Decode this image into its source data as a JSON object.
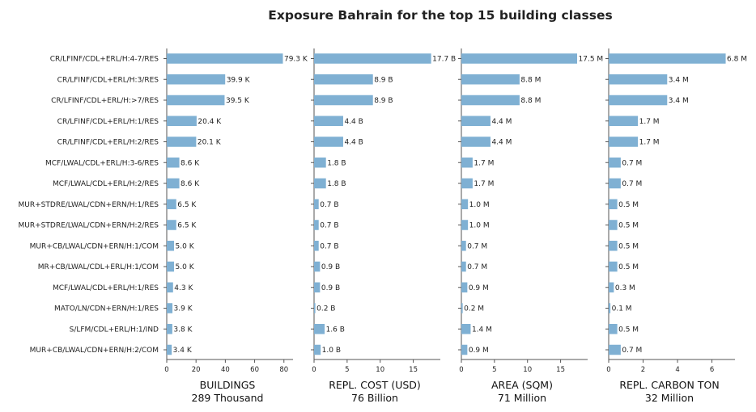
{
  "title": "Exposure Bahrain for the top 15 building classes",
  "bar_color": "#7fb0d3",
  "axis_color": "#555555",
  "chart_data": [
    {
      "type": "bar",
      "orientation": "horizontal",
      "xlabel": "BUILDINGS",
      "subtitle": "289 Thousand",
      "xlim": [
        0,
        84
      ],
      "ticks": [
        0,
        20,
        40,
        60,
        80
      ],
      "categories": [
        "CR/LFINF/CDL+ERL/H:4-7/RES",
        "CR/LFINF/CDL+ERL/H:3/RES",
        "CR/LFINF/CDL+ERL/H:>7/RES",
        "CR/LFINF/CDL+ERL/H:1/RES",
        "CR/LFINF/CDL+ERL/H:2/RES",
        "MCF/LWAL/CDL+ERL/H:3-6/RES",
        "MCF/LWAL/CDL+ERL/H:2/RES",
        "MUR+STDRE/LWAL/CDN+ERN/H:1/RES",
        "MUR+STDRE/LWAL/CDN+ERN/H:2/RES",
        "MUR+CB/LWAL/CDN+ERN/H:1/COM",
        "MR+CB/LWAL/CDL+ERL/H:1/COM",
        "MCF/LWAL/CDL+ERL/H:1/RES",
        "MATO/LN/CDN+ERN/H:1/RES",
        "S/LFM/CDL+ERL/H:1/IND",
        "MUR+CB/LWAL/CDN+ERN/H:2/COM"
      ],
      "values": [
        79.3,
        39.9,
        39.5,
        20.4,
        20.1,
        8.6,
        8.6,
        6.5,
        6.5,
        5.0,
        5.0,
        4.3,
        3.9,
        3.8,
        3.4
      ],
      "labels": [
        "79.3 K",
        "39.9 K",
        "39.5 K",
        "20.4 K",
        "20.1 K",
        "8.6 K",
        "8.6 K",
        "6.5 K",
        "6.5 K",
        "5.0 K",
        "5.0 K",
        "4.3 K",
        "3.9 K",
        "3.8 K",
        "3.4 K"
      ]
    },
    {
      "type": "bar",
      "orientation": "horizontal",
      "xlabel": "REPL. COST (USD)",
      "subtitle": "76 Billion",
      "xlim": [
        0,
        18.6
      ],
      "ticks": [
        0,
        5,
        10,
        15
      ],
      "categories": [
        "CR/LFINF/CDL+ERL/H:4-7/RES",
        "CR/LFINF/CDL+ERL/H:3/RES",
        "CR/LFINF/CDL+ERL/H:>7/RES",
        "CR/LFINF/CDL+ERL/H:1/RES",
        "CR/LFINF/CDL+ERL/H:2/RES",
        "MCF/LWAL/CDL+ERL/H:3-6/RES",
        "MCF/LWAL/CDL+ERL/H:2/RES",
        "MUR+STDRE/LWAL/CDN+ERN/H:1/RES",
        "MUR+STDRE/LWAL/CDN+ERN/H:2/RES",
        "MUR+CB/LWAL/CDN+ERN/H:1/COM",
        "MR+CB/LWAL/CDL+ERL/H:1/COM",
        "MCF/LWAL/CDL+ERL/H:1/RES",
        "MATO/LN/CDN+ERN/H:1/RES",
        "S/LFM/CDL+ERL/H:1/IND",
        "MUR+CB/LWAL/CDN+ERN/H:2/COM"
      ],
      "values": [
        17.7,
        8.9,
        8.9,
        4.4,
        4.4,
        1.8,
        1.8,
        0.7,
        0.7,
        0.7,
        0.9,
        0.9,
        0.2,
        1.6,
        1.0
      ],
      "labels": [
        "17.7 B",
        "8.9 B",
        "8.9 B",
        "4.4 B",
        "4.4 B",
        "1.8 B",
        "1.8 B",
        "0.7 B",
        "0.7 B",
        "0.7 B",
        "0.9 B",
        "0.9 B",
        "0.2 B",
        "1.6 B",
        "1.0 B"
      ]
    },
    {
      "type": "bar",
      "orientation": "horizontal",
      "xlabel": "AREA (SQM)",
      "subtitle": "71 Million",
      "xlim": [
        0,
        18.6
      ],
      "ticks": [
        0,
        5,
        10,
        15
      ],
      "categories": [
        "CR/LFINF/CDL+ERL/H:4-7/RES",
        "CR/LFINF/CDL+ERL/H:3/RES",
        "CR/LFINF/CDL+ERL/H:>7/RES",
        "CR/LFINF/CDL+ERL/H:1/RES",
        "CR/LFINF/CDL+ERL/H:2/RES",
        "MCF/LWAL/CDL+ERL/H:3-6/RES",
        "MCF/LWAL/CDL+ERL/H:2/RES",
        "MUR+STDRE/LWAL/CDN+ERN/H:1/RES",
        "MUR+STDRE/LWAL/CDN+ERN/H:2/RES",
        "MUR+CB/LWAL/CDN+ERN/H:1/COM",
        "MR+CB/LWAL/CDL+ERL/H:1/COM",
        "MCF/LWAL/CDL+ERL/H:1/RES",
        "MATO/LN/CDN+ERN/H:1/RES",
        "S/LFM/CDL+ERL/H:1/IND",
        "MUR+CB/LWAL/CDN+ERN/H:2/COM"
      ],
      "values": [
        17.5,
        8.8,
        8.8,
        4.4,
        4.4,
        1.7,
        1.7,
        1.0,
        1.0,
        0.7,
        0.7,
        0.9,
        0.2,
        1.4,
        0.9
      ],
      "labels": [
        "17.5 M",
        "8.8 M",
        "8.8 M",
        "4.4 M",
        "4.4 M",
        "1.7 M",
        "1.7 M",
        "1.0 M",
        "1.0 M",
        "0.7 M",
        "0.7 M",
        "0.9 M",
        "0.2 M",
        "1.4 M",
        "0.9 M"
      ]
    },
    {
      "type": "bar",
      "orientation": "horizontal",
      "xlabel": "REPL. CARBON TON",
      "subtitle": "32 Million",
      "xlim": [
        0,
        7.15
      ],
      "ticks": [
        0,
        2,
        4,
        6
      ],
      "categories": [
        "CR/LFINF/CDL+ERL/H:4-7/RES",
        "CR/LFINF/CDL+ERL/H:3/RES",
        "CR/LFINF/CDL+ERL/H:>7/RES",
        "CR/LFINF/CDL+ERL/H:1/RES",
        "CR/LFINF/CDL+ERL/H:2/RES",
        "MCF/LWAL/CDL+ERL/H:3-6/RES",
        "MCF/LWAL/CDL+ERL/H:2/RES",
        "MUR+STDRE/LWAL/CDN+ERN/H:1/RES",
        "MUR+STDRE/LWAL/CDN+ERN/H:2/RES",
        "MUR+CB/LWAL/CDN+ERN/H:1/COM",
        "MR+CB/LWAL/CDL+ERL/H:1/COM",
        "MCF/LWAL/CDL+ERL/H:1/RES",
        "MATO/LN/CDN+ERN/H:1/RES",
        "S/LFM/CDL+ERL/H:1/IND",
        "MUR+CB/LWAL/CDN+ERN/H:2/COM"
      ],
      "values": [
        6.8,
        3.4,
        3.4,
        1.7,
        1.7,
        0.7,
        0.7,
        0.5,
        0.5,
        0.5,
        0.5,
        0.3,
        0.1,
        0.5,
        0.7
      ],
      "labels": [
        "6.8 M",
        "3.4 M",
        "3.4 M",
        "1.7 M",
        "1.7 M",
        "0.7 M",
        "0.7 M",
        "0.5 M",
        "0.5 M",
        "0.5 M",
        "0.5 M",
        "0.3 M",
        "0.1 M",
        "0.5 M",
        "0.7 M"
      ]
    }
  ]
}
